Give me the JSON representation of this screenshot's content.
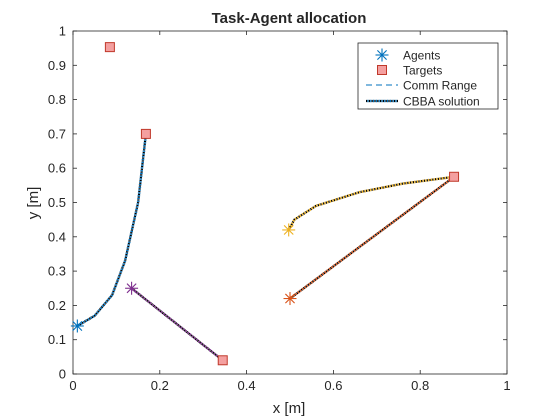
{
  "chart_data": {
    "type": "scatter",
    "title": "Task-Agent allocation",
    "xlabel": "x [m]",
    "ylabel": "y [m]",
    "xlim": [
      0,
      1
    ],
    "ylim": [
      0,
      1
    ],
    "x_ticks": [
      "0",
      "0.2",
      "0.4",
      "0.6",
      "0.8",
      "1"
    ],
    "y_ticks": [
      "0",
      "0.1",
      "0.2",
      "0.3",
      "0.4",
      "0.5",
      "0.6",
      "0.7",
      "0.8",
      "0.9",
      "1"
    ],
    "grid": false,
    "legend_position": "top-right",
    "legend": [
      "Agents",
      "Targets",
      "Comm Range",
      "CBBA solution"
    ],
    "agents": [
      {
        "x": 0.01,
        "y": 0.14,
        "color": "#0072BD"
      },
      {
        "x": 0.135,
        "y": 0.25,
        "color": "#7E2F8E"
      },
      {
        "x": 0.5,
        "y": 0.22,
        "color": "#D95319"
      },
      {
        "x": 0.497,
        "y": 0.42,
        "color": "#EDB120"
      }
    ],
    "targets": [
      {
        "x": 0.085,
        "y": 0.953
      },
      {
        "x": 0.168,
        "y": 0.7
      },
      {
        "x": 0.345,
        "y": 0.04
      },
      {
        "x": 0.878,
        "y": 0.575
      }
    ],
    "target_style": {
      "face": "#F4A0A0",
      "edge": "#C0392B"
    },
    "paths": [
      {
        "color": "#0072BD",
        "points": [
          [
            0.01,
            0.14
          ],
          [
            0.05,
            0.17
          ],
          [
            0.09,
            0.23
          ],
          [
            0.12,
            0.33
          ],
          [
            0.15,
            0.5
          ],
          [
            0.168,
            0.7
          ]
        ]
      },
      {
        "color": "#7E2F8E",
        "points": [
          [
            0.135,
            0.25
          ],
          [
            0.345,
            0.04
          ]
        ]
      },
      {
        "color": "#D95319",
        "points": [
          [
            0.5,
            0.22
          ],
          [
            0.878,
            0.575
          ]
        ]
      },
      {
        "color": "#EDB120",
        "points": [
          [
            0.497,
            0.42
          ],
          [
            0.51,
            0.45
          ],
          [
            0.56,
            0.49
          ],
          [
            0.66,
            0.53
          ],
          [
            0.76,
            0.555
          ],
          [
            0.878,
            0.575
          ]
        ]
      }
    ],
    "path_underlay_color": "#000000",
    "comm_range_color": "#0072BD",
    "legend_path_color": "#0072BD",
    "legend_agent_color": "#0072BD"
  }
}
